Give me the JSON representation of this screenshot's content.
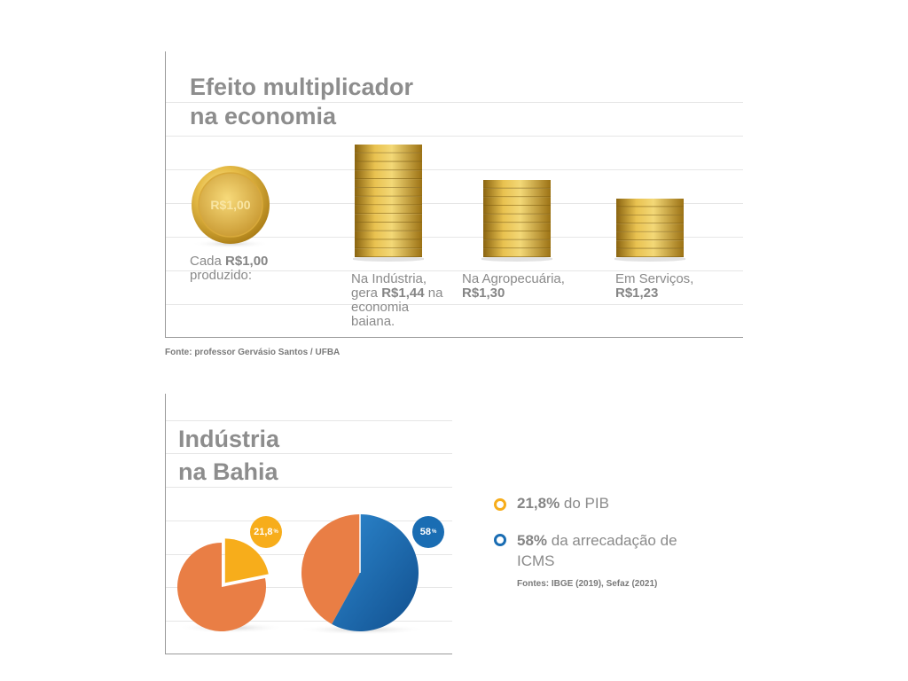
{
  "multiplier_chart": {
    "title_line1": "Efeito multiplicador",
    "title_line2": "na economia",
    "coin_text": "R$1,00",
    "items": [
      {
        "pre": "Cada ",
        "value": "R$1,00",
        "post": "produzido:"
      },
      {
        "pre": "Na Indústria, gera ",
        "value": "R$1,44",
        "post": "na economia baiana."
      },
      {
        "pre": "Na Agropecuária, ",
        "value": "R$1,30",
        "post": ""
      },
      {
        "pre": "Em Serviços, ",
        "value": "R$1,23",
        "post": ""
      }
    ],
    "source": "Fonte: professor Gervásio Santos / UFBA"
  },
  "industry_chart": {
    "title_line1": "Indústria",
    "title_line2": "na Bahia",
    "badge1_value": "21,8",
    "badge1_unit": "%",
    "badge2_value": "58",
    "badge2_unit": "%",
    "legend": [
      {
        "value": "21,8%",
        "text": " do PIB"
      },
      {
        "value": "58%",
        "text": " da arrecadação de ICMS"
      }
    ],
    "source": "Fontes: IBGE (2019), Sefaz (2021)"
  },
  "colors": {
    "orange": "#e97e45",
    "yellow": "#f7ad1b",
    "blue": "#1a6db3",
    "gold": "#c99f2e"
  },
  "chart_data": [
    {
      "type": "bar",
      "title": "Efeito multiplicador na economia",
      "categories": [
        "Cada R$1,00 produzido",
        "Indústria",
        "Agropecuária",
        "Serviços"
      ],
      "values": [
        1.0,
        1.44,
        1.3,
        1.23
      ],
      "unit": "R$"
    },
    {
      "type": "pie",
      "title": "Indústria na Bahia",
      "series": [
        {
          "name": "do PIB",
          "values": [
            21.8,
            78.2
          ]
        },
        {
          "name": "da arrecadação de ICMS",
          "values": [
            58,
            42
          ]
        }
      ],
      "unit": "%"
    }
  ]
}
